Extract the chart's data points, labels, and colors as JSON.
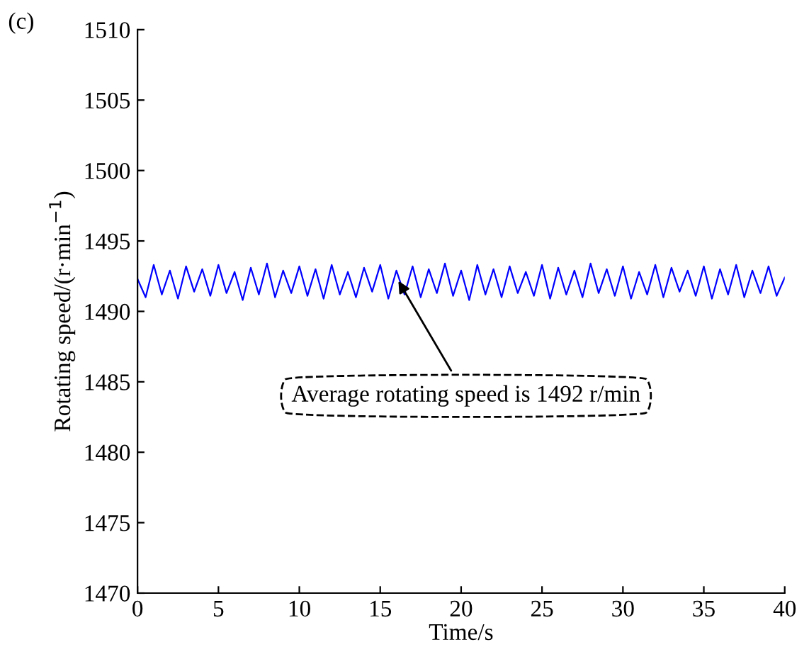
{
  "chart_data": {
    "type": "line",
    "title": "(c)",
    "xlabel": "Time/s",
    "ylabel": "Rotating speed/(r·min$^{−1}$)",
    "x": [
      0,
      0.5,
      1,
      1.5,
      2,
      2.5,
      3,
      3.5,
      4,
      4.5,
      5,
      5.5,
      6,
      6.5,
      7,
      7.5,
      8,
      8.5,
      9,
      9.5,
      10,
      10.5,
      11,
      11.5,
      12,
      12.5,
      13,
      13.5,
      14,
      14.5,
      15,
      15.5,
      16,
      16.5,
      17,
      17.5,
      18,
      18.5,
      19,
      19.5,
      20,
      20.5,
      21,
      21.5,
      22,
      22.5,
      23,
      23.5,
      24,
      24.5,
      25,
      25.5,
      26,
      26.5,
      27,
      27.5,
      28,
      28.5,
      29,
      29.5,
      30,
      30.5,
      31,
      31.5,
      32,
      32.5,
      33,
      33.5,
      34,
      34.5,
      35,
      35.5,
      36,
      36.5,
      37,
      37.5,
      38,
      38.5,
      39,
      39.5,
      40
    ],
    "series": [
      {
        "color": "#0000ff",
        "values": [
          1492.3,
          1491.0,
          1493.3,
          1491.2,
          1492.9,
          1490.9,
          1493.2,
          1491.4,
          1493.0,
          1491.1,
          1493.3,
          1491.3,
          1492.8,
          1490.8,
          1493.1,
          1491.2,
          1493.4,
          1491.0,
          1492.9,
          1491.3,
          1493.2,
          1491.1,
          1493.0,
          1490.9,
          1493.3,
          1491.2,
          1492.8,
          1491.0,
          1493.1,
          1491.4,
          1493.3,
          1490.9,
          1492.9,
          1491.2,
          1493.2,
          1491.0,
          1493.0,
          1491.3,
          1493.4,
          1491.1,
          1492.9,
          1490.8,
          1493.3,
          1491.2,
          1493.0,
          1491.0,
          1493.2,
          1491.3,
          1492.8,
          1491.1,
          1493.3,
          1490.9,
          1493.1,
          1491.2,
          1492.9,
          1491.0,
          1493.4,
          1491.3,
          1493.0,
          1491.1,
          1493.2,
          1490.9,
          1492.8,
          1491.2,
          1493.3,
          1491.0,
          1493.1,
          1491.4,
          1492.9,
          1491.1,
          1493.2,
          1490.9,
          1493.0,
          1491.2,
          1493.3,
          1491.0,
          1492.9,
          1491.3,
          1493.2,
          1491.1,
          1492.4
        ]
      }
    ],
    "xlim": [
      0,
      40
    ],
    "xticks": [
      0,
      5,
      10,
      15,
      20,
      25,
      30,
      35,
      40
    ],
    "ylim": [
      1470,
      1510
    ],
    "yticks": [
      1470,
      1475,
      1480,
      1485,
      1490,
      1495,
      1500,
      1505,
      1510
    ],
    "grid": false,
    "legend": false,
    "marker": "none",
    "line_style": "solid",
    "annotations": [
      {
        "text": "Average rotating speed is 1492 r/min",
        "x": 16,
        "y": 1492.4
      }
    ]
  }
}
